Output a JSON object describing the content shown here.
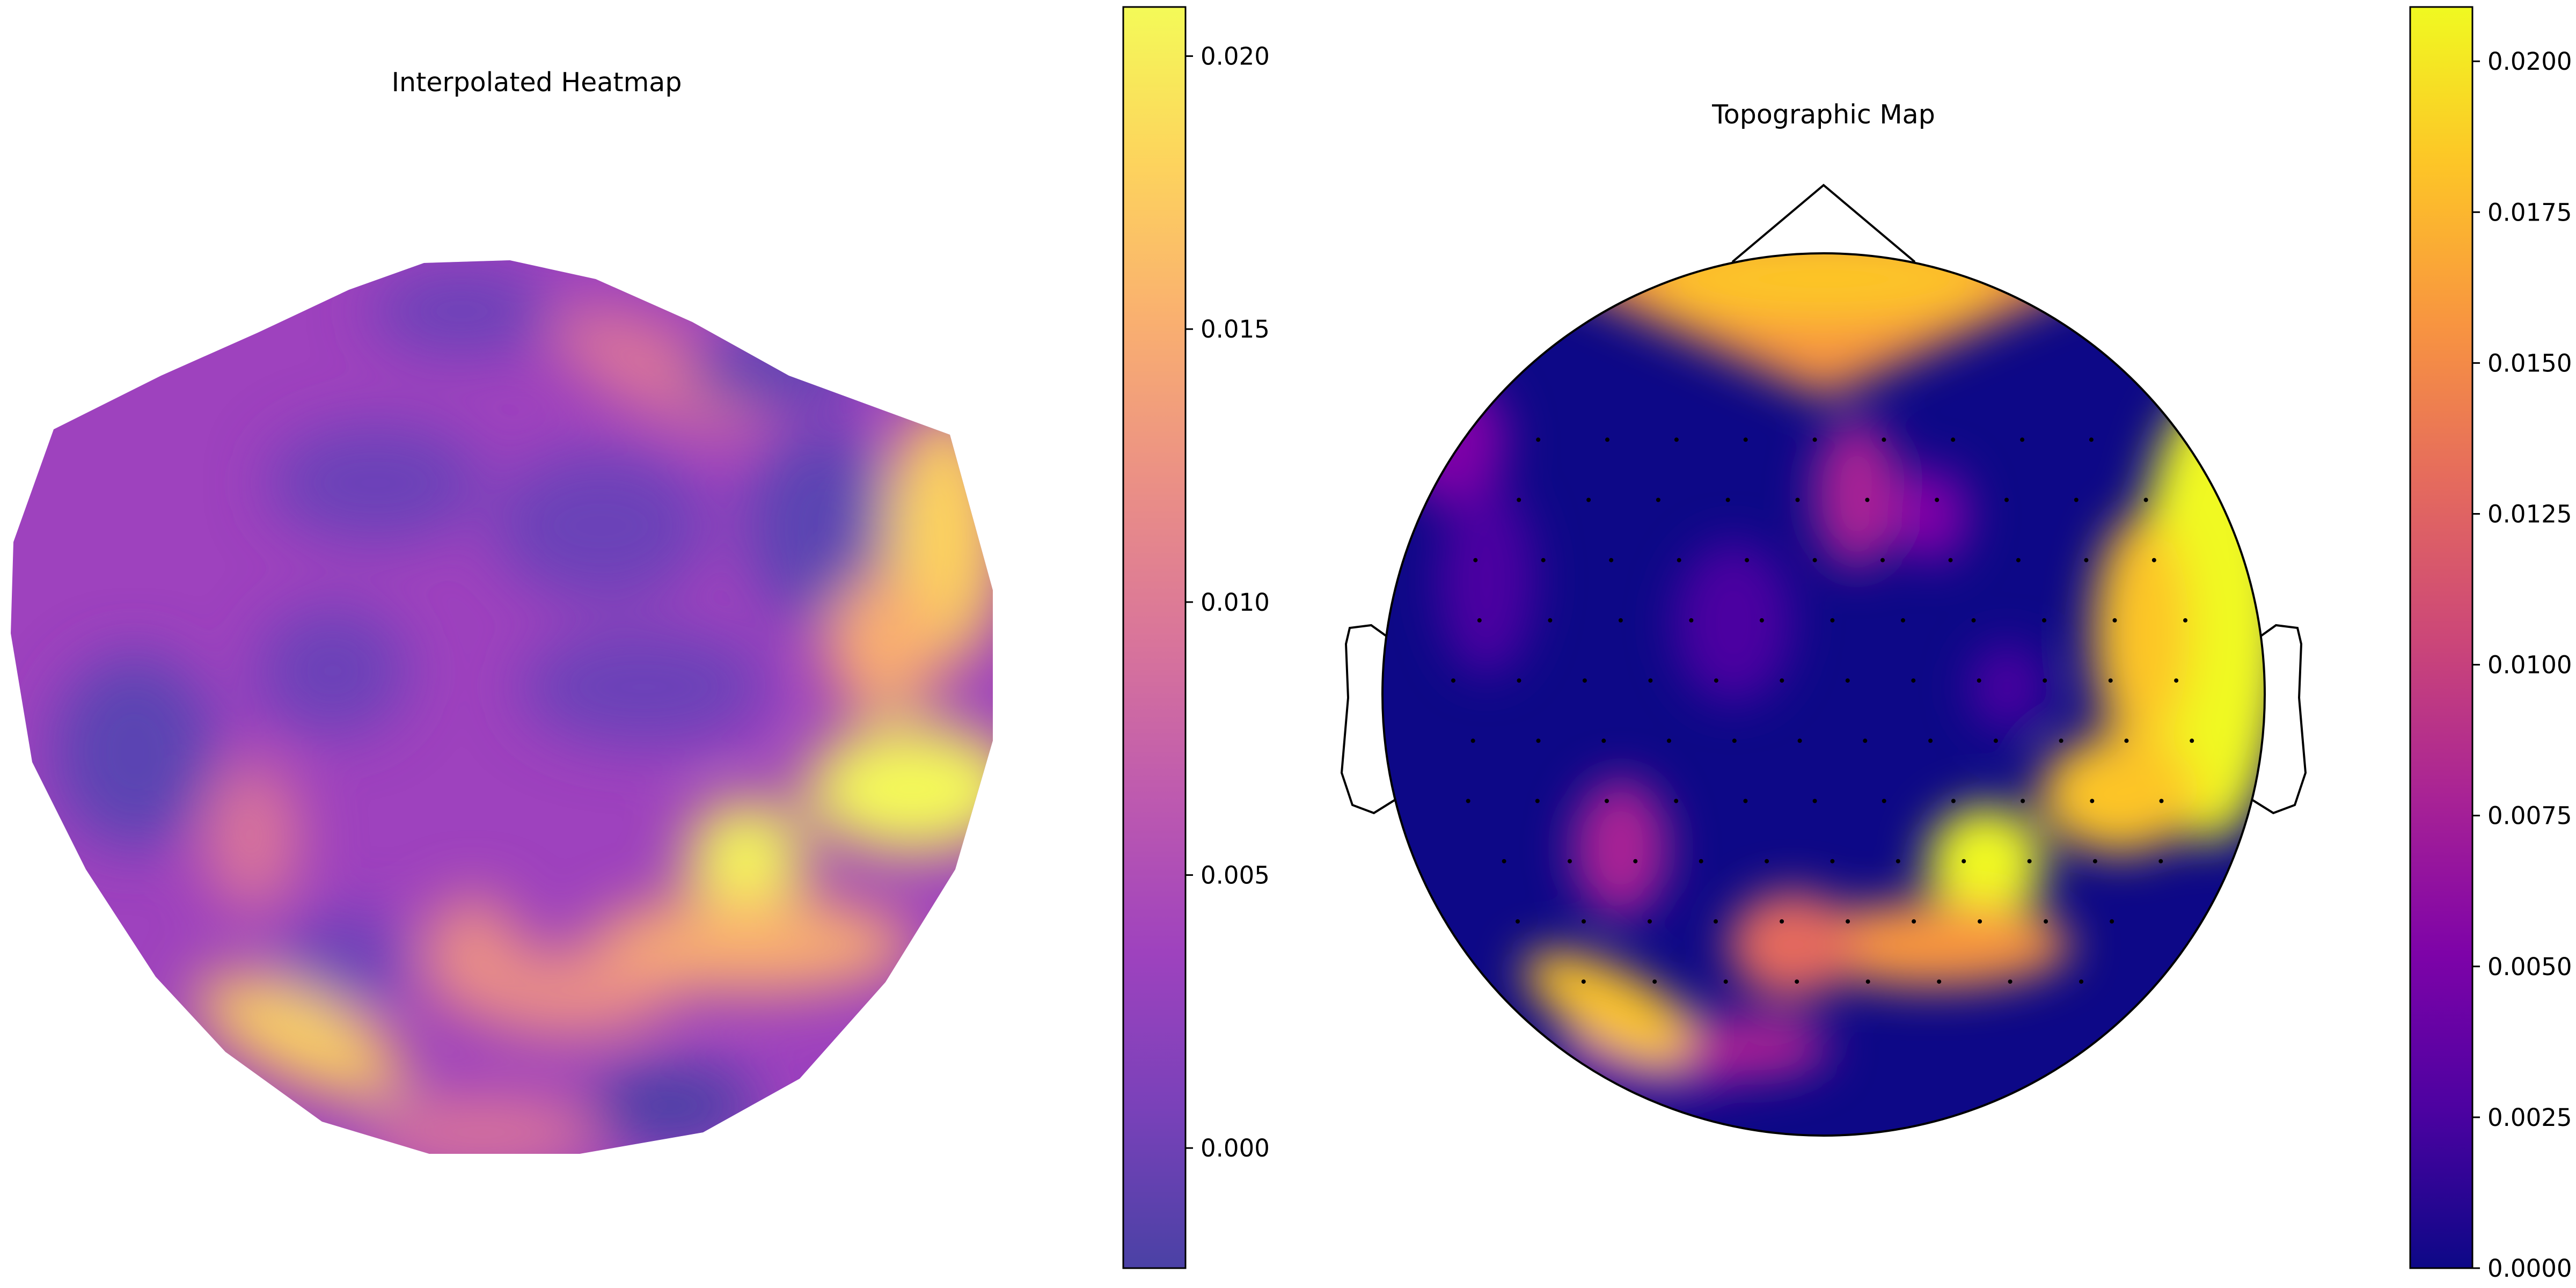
{
  "chart_data": [
    {
      "type": "heatmap",
      "title": "Interpolated Heatmap",
      "colormap": "plasma",
      "alpha": 0.75,
      "colorbar": {
        "range": [
          -0.0022,
          0.0209
        ],
        "ticks": [
          0.0,
          0.005,
          0.01,
          0.015,
          0.02
        ],
        "tick_labels": [
          "0.000",
          "0.005",
          "0.010",
          "0.015",
          "0.020"
        ]
      },
      "hotspots": [
        {
          "region": "right edge",
          "value": 0.019
        },
        {
          "region": "lower right",
          "value": 0.02
        },
        {
          "region": "lower left",
          "value": 0.019
        },
        {
          "region": "lower center",
          "value": 0.014
        },
        {
          "region": "upper center",
          "value": 0.011
        },
        {
          "region": "left lower",
          "value": 0.011
        }
      ]
    },
    {
      "type": "heatmap",
      "title": "Topographic Map",
      "colormap": "plasma",
      "colorbar": {
        "range": [
          0.0,
          0.0209
        ],
        "ticks": [
          0.0,
          0.0025,
          0.005,
          0.0075,
          0.01,
          0.0125,
          0.015,
          0.0175,
          0.02
        ],
        "tick_labels": [
          "0.0000",
          "0.0025",
          "0.0050",
          "0.0075",
          "0.0100",
          "0.0125",
          "0.0150",
          "0.0175",
          "0.0200"
        ]
      },
      "hotspots": [
        {
          "region": "frontal",
          "value": 0.018
        },
        {
          "region": "right temporal",
          "value": 0.0209
        },
        {
          "region": "lower right",
          "value": 0.02
        },
        {
          "region": "lower left",
          "value": 0.019
        },
        {
          "region": "left temporal",
          "value": 0.008
        }
      ],
      "sensor_markers": true,
      "head_outline": true
    }
  ]
}
